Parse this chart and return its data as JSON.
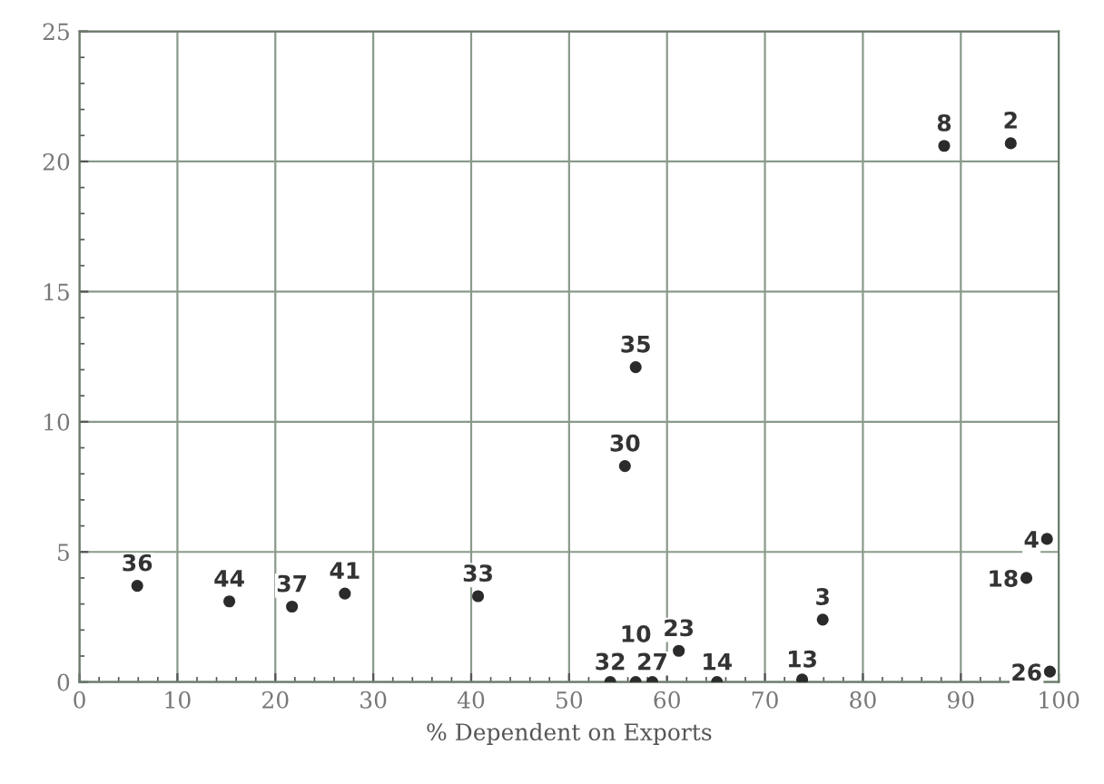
{
  "chart_data": {
    "type": "scatter",
    "xlabel": "% Dependent on Exports",
    "x": [
      5.9,
      15.3,
      21.7,
      27.1,
      40.7,
      54.2,
      56.8,
      58.5,
      61.2,
      65.1,
      73.8,
      75.9,
      55.7,
      56.8,
      88.3,
      95.1,
      98.8,
      96.7,
      99.1
    ],
    "series": [
      {
        "color": "#2b2b2b",
        "values": [
          3.7,
          3.1,
          2.9,
          3.4,
          3.3,
          0,
          0,
          0,
          1.2,
          0,
          0.1,
          2.4,
          8.3,
          12.1,
          20.6,
          20.7,
          5.5,
          4.0,
          0.4
        ]
      }
    ],
    "annotations": [
      {
        "text": "36",
        "x": 5.9,
        "y": 3.7
      },
      {
        "text": "44",
        "x": 15.3,
        "y": 3.1
      },
      {
        "text": "37",
        "x": 21.7,
        "y": 2.9
      },
      {
        "text": "41",
        "x": 27.1,
        "y": 3.4
      },
      {
        "text": "33",
        "x": 40.7,
        "y": 3.3
      },
      {
        "text": "32",
        "x": 54.2,
        "y": 0
      },
      {
        "text": "10",
        "x": 56.8,
        "y": 0
      },
      {
        "text": "27",
        "x": 58.5,
        "y": 0
      },
      {
        "text": "23",
        "x": 61.2,
        "y": 1.2
      },
      {
        "text": "14",
        "x": 65.1,
        "y": 0
      },
      {
        "text": "13",
        "x": 73.8,
        "y": 0.1
      },
      {
        "text": "3",
        "x": 75.9,
        "y": 2.4
      },
      {
        "text": "30",
        "x": 55.7,
        "y": 8.3
      },
      {
        "text": "35",
        "x": 56.8,
        "y": 12.1
      },
      {
        "text": "8",
        "x": 88.3,
        "y": 20.6
      },
      {
        "text": "2",
        "x": 95.1,
        "y": 20.7
      },
      {
        "text": "4",
        "x": 98.8,
        "y": 5.5
      },
      {
        "text": "18",
        "x": 96.7,
        "y": 4.0
      },
      {
        "text": "26",
        "x": 99.1,
        "y": 0.4
      }
    ],
    "xlim": [
      0,
      100
    ],
    "ylim": [
      0,
      25
    ],
    "xticks": [
      0,
      10,
      20,
      30,
      40,
      50,
      60,
      70,
      80,
      90,
      100
    ],
    "yticks": [
      0,
      5,
      10,
      15,
      20,
      25
    ],
    "grid": true,
    "marker": "circle"
  }
}
